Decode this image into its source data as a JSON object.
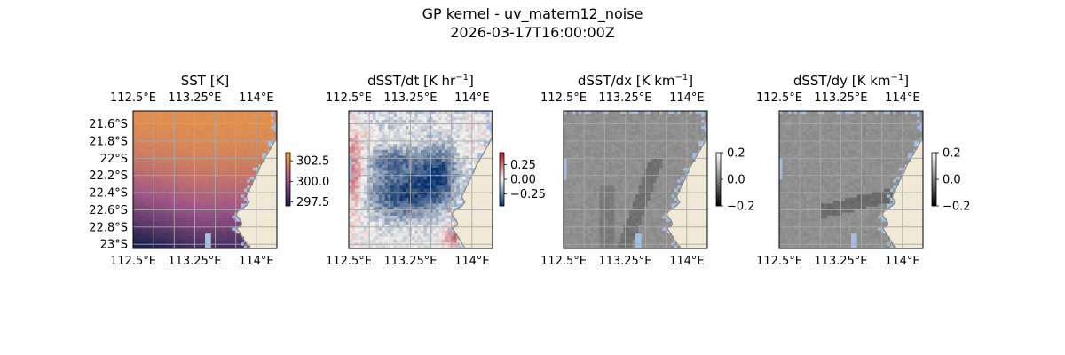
{
  "suptitle": {
    "line1": "GP kernel - uv_matern12_noise",
    "line2": "2026-03-17T16:00:00Z"
  },
  "colors": {
    "land": "#efe9d6",
    "coast": "#888888",
    "grid": "#a8a8a8",
    "missing": "#a6bde0",
    "thermal_low": "#1a1f4a",
    "thermal_mid": "#a0558a",
    "thermal_high": "#f5a23c",
    "div_low": "#08306b",
    "div_mid": "#f4f3f0",
    "div_high": "#b2182b",
    "gray_low": "#000000",
    "gray_high": "#ffffff"
  },
  "chart_data": [
    {
      "type": "heatmap",
      "panel": "sst",
      "title": "SST [K]",
      "lon_ticks": [
        "112.5°E",
        "113.25°E",
        "114°E"
      ],
      "lat_ticks": [
        "21.6°S",
        "21.8°S",
        "22°S",
        "22.2°S",
        "22.4°S",
        "22.6°S",
        "22.8°S",
        "23°S"
      ],
      "lon_range": [
        112.5,
        114.25
      ],
      "lat_range": [
        -23.05,
        -21.45
      ],
      "show_lat_labels": true,
      "colormap": "thermal",
      "vlim": [
        297.0,
        303.5
      ],
      "colorbar_ticks": [
        "302.5",
        "300.0",
        "297.5"
      ],
      "colorbar_tick_values": [
        302.5,
        300.0,
        297.5
      ],
      "grid": true
    },
    {
      "type": "heatmap",
      "panel": "dsst_dt",
      "title": "dSST/dt [K hr",
      "title_exp": "−1",
      "title_end": "]",
      "lon_ticks": [
        "112.5°E",
        "113.25°E",
        "114°E"
      ],
      "lon_range": [
        112.5,
        114.25
      ],
      "lat_range": [
        -23.05,
        -21.45
      ],
      "show_lat_labels": false,
      "colormap": "diverging",
      "vlim": [
        -0.45,
        0.45
      ],
      "colorbar_ticks": [
        "0.25",
        "0.00",
        "−0.25"
      ],
      "colorbar_tick_values": [
        0.25,
        0.0,
        -0.25
      ],
      "grid": true
    },
    {
      "type": "heatmap",
      "panel": "dsst_dx",
      "title": "dSST/dx [K km",
      "title_exp": "−1",
      "title_end": "]",
      "lon_ticks": [
        "112.5°E",
        "113.25°E",
        "114°E"
      ],
      "lon_range": [
        112.5,
        114.25
      ],
      "lat_range": [
        -23.05,
        -21.45
      ],
      "show_lat_labels": false,
      "colormap": "gray",
      "vlim": [
        -0.2,
        0.2
      ],
      "colorbar_ticks": [
        "0.2",
        "0.0",
        "−0.2"
      ],
      "colorbar_tick_values": [
        0.2,
        0.0,
        -0.2
      ],
      "grid": true
    },
    {
      "type": "heatmap",
      "panel": "dsst_dy",
      "title": "dSST/dy [K km",
      "title_exp": "−1",
      "title_end": "]",
      "lon_ticks": [
        "112.5°E",
        "113.25°E",
        "114°E"
      ],
      "lon_range": [
        112.5,
        114.25
      ],
      "lat_range": [
        -23.05,
        -21.45
      ],
      "show_lat_labels": false,
      "colormap": "gray",
      "vlim": [
        -0.2,
        0.2
      ],
      "colorbar_ticks": [
        "0.2",
        "0.0",
        "−0.2"
      ],
      "colorbar_tick_values": [
        0.2,
        0.0,
        -0.2
      ],
      "grid": true
    }
  ]
}
